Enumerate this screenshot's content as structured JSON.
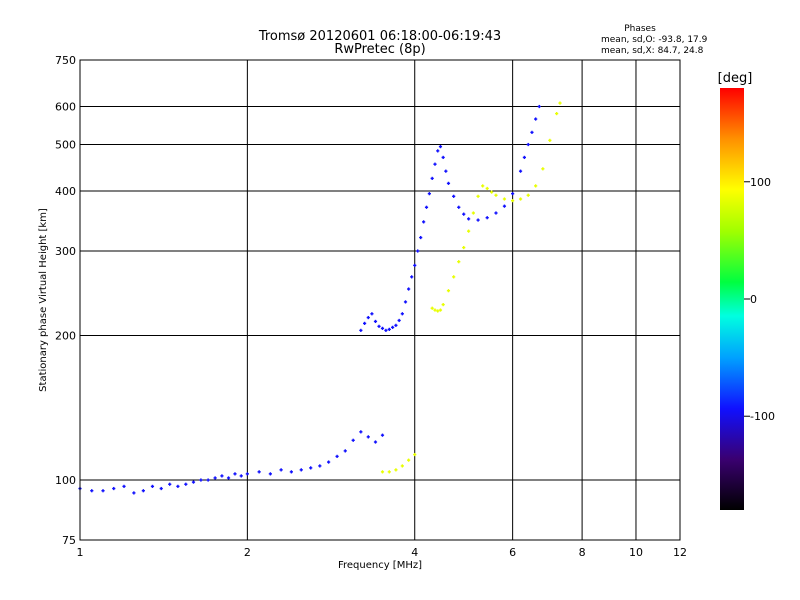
{
  "chart_data": {
    "type": "scatter",
    "title": "Tromsø 20120601 06:18:00-06:19:43",
    "subtitle": "RwPretec (8p)",
    "xlabel": "Frequency [MHz]",
    "ylabel": "Stationary phase Virtual Height [km]",
    "x_scale": "log",
    "y_scale": "log",
    "xlim": [
      1,
      12
    ],
    "ylim": [
      75,
      750
    ],
    "x_ticks": [
      1,
      2,
      4,
      6,
      8,
      10,
      12
    ],
    "x_tick_labels": [
      "1",
      "2",
      "4",
      "6",
      "8",
      "10",
      "12"
    ],
    "y_ticks": [
      75,
      100,
      200,
      300,
      400,
      500,
      600,
      750
    ],
    "y_tick_labels": [
      "75",
      "100",
      "200",
      "300",
      "400",
      "500",
      "600",
      "750"
    ],
    "grid": true,
    "colorbar": {
      "label": "[deg]",
      "range": [
        -180,
        180
      ],
      "ticks": [
        -100,
        0,
        100
      ],
      "tick_labels": [
        "-100",
        "0",
        "100"
      ]
    },
    "phase_stats": {
      "heading": "Phases",
      "line1": "mean, sd,O: -93.8, 17.9",
      "line2": "mean, sd,X:  84.7, 24.8"
    },
    "series": [
      {
        "mode": "O",
        "phase_mean": -93.8,
        "points": [
          [
            1.0,
            96
          ],
          [
            1.05,
            95
          ],
          [
            1.1,
            95
          ],
          [
            1.15,
            96
          ],
          [
            1.2,
            97
          ],
          [
            1.25,
            94
          ],
          [
            1.3,
            95
          ],
          [
            1.35,
            97
          ],
          [
            1.4,
            96
          ],
          [
            1.45,
            98
          ],
          [
            1.5,
            97
          ],
          [
            1.55,
            98
          ],
          [
            1.6,
            99
          ],
          [
            1.65,
            100
          ],
          [
            1.7,
            100
          ],
          [
            1.75,
            101
          ],
          [
            1.8,
            102
          ],
          [
            1.85,
            101
          ],
          [
            1.9,
            103
          ],
          [
            1.95,
            102
          ],
          [
            2.0,
            103
          ],
          [
            2.1,
            104
          ],
          [
            2.2,
            103
          ],
          [
            2.3,
            105
          ],
          [
            2.4,
            104
          ],
          [
            2.5,
            105
          ],
          [
            2.6,
            106
          ],
          [
            2.7,
            107
          ],
          [
            2.8,
            109
          ],
          [
            2.9,
            112
          ],
          [
            3.0,
            115
          ],
          [
            3.1,
            121
          ],
          [
            3.2,
            126
          ],
          [
            3.3,
            123
          ],
          [
            3.4,
            120
          ],
          [
            3.5,
            124
          ],
          [
            3.2,
            205
          ],
          [
            3.25,
            212
          ],
          [
            3.3,
            218
          ],
          [
            3.35,
            222
          ],
          [
            3.4,
            214
          ],
          [
            3.45,
            209
          ],
          [
            3.5,
            207
          ],
          [
            3.55,
            205
          ],
          [
            3.6,
            206
          ],
          [
            3.65,
            208
          ],
          [
            3.7,
            210
          ],
          [
            3.75,
            215
          ],
          [
            3.8,
            222
          ],
          [
            3.85,
            235
          ],
          [
            3.9,
            250
          ],
          [
            3.95,
            265
          ],
          [
            4.0,
            280
          ],
          [
            4.05,
            300
          ],
          [
            4.1,
            320
          ],
          [
            4.15,
            345
          ],
          [
            4.2,
            370
          ],
          [
            4.25,
            395
          ],
          [
            4.3,
            425
          ],
          [
            4.35,
            455
          ],
          [
            4.4,
            485
          ],
          [
            4.45,
            495
          ],
          [
            4.5,
            470
          ],
          [
            4.55,
            440
          ],
          [
            4.6,
            415
          ],
          [
            4.7,
            390
          ],
          [
            4.8,
            370
          ],
          [
            4.9,
            358
          ],
          [
            5.0,
            350
          ],
          [
            5.2,
            348
          ],
          [
            5.4,
            352
          ],
          [
            5.6,
            360
          ],
          [
            5.8,
            372
          ],
          [
            6.0,
            395
          ],
          [
            6.2,
            440
          ],
          [
            6.3,
            470
          ],
          [
            6.4,
            500
          ],
          [
            6.5,
            530
          ],
          [
            6.6,
            565
          ],
          [
            6.7,
            600
          ]
        ]
      },
      {
        "mode": "X",
        "phase_mean": 84.7,
        "points": [
          [
            3.5,
            104
          ],
          [
            3.6,
            104
          ],
          [
            3.7,
            105
          ],
          [
            3.8,
            107
          ],
          [
            3.9,
            110
          ],
          [
            4.0,
            113
          ],
          [
            4.3,
            228
          ],
          [
            4.35,
            226
          ],
          [
            4.4,
            225
          ],
          [
            4.45,
            226
          ],
          [
            4.5,
            232
          ],
          [
            4.6,
            248
          ],
          [
            4.7,
            265
          ],
          [
            4.8,
            285
          ],
          [
            4.9,
            305
          ],
          [
            5.0,
            330
          ],
          [
            5.1,
            360
          ],
          [
            5.2,
            390
          ],
          [
            5.3,
            410
          ],
          [
            5.4,
            405
          ],
          [
            5.5,
            398
          ],
          [
            5.6,
            392
          ],
          [
            5.8,
            385
          ],
          [
            6.0,
            382
          ],
          [
            6.2,
            385
          ],
          [
            6.4,
            392
          ],
          [
            6.6,
            410
          ],
          [
            6.8,
            445
          ],
          [
            7.0,
            510
          ],
          [
            7.2,
            580
          ],
          [
            7.3,
            610
          ]
        ]
      }
    ]
  }
}
